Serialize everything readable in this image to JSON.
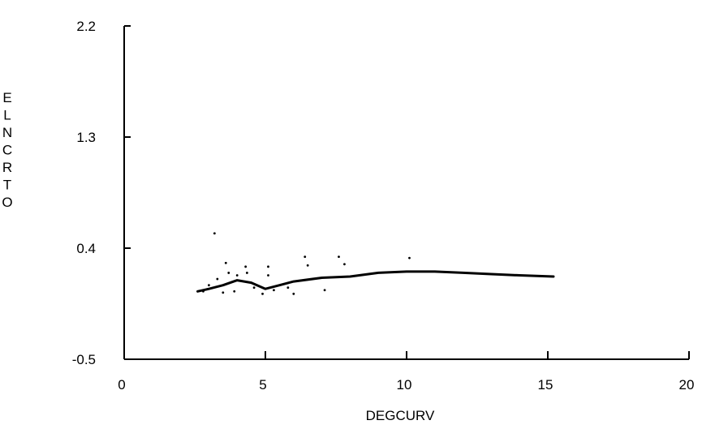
{
  "chart_data": {
    "type": "scatter",
    "title": "",
    "xlabel": "DEGCURV",
    "ylabel": "ELNCRTO",
    "xlim": [
      0,
      20
    ],
    "ylim": [
      -0.5,
      2.2
    ],
    "xticks": [
      "0",
      "5",
      "10",
      "15",
      "20"
    ],
    "xtick_values": [
      0,
      5,
      10,
      15,
      20
    ],
    "yticks": [
      "2.2",
      "1.3",
      "0.4",
      "-0.5"
    ],
    "ytick_values": [
      2.2,
      1.3,
      0.4,
      -0.5
    ],
    "grid": false,
    "points": [
      {
        "x": 2.8,
        "y": 0.05
      },
      {
        "x": 3.0,
        "y": 0.1
      },
      {
        "x": 3.2,
        "y": 0.52
      },
      {
        "x": 3.3,
        "y": 0.15
      },
      {
        "x": 3.5,
        "y": 0.04
      },
      {
        "x": 3.6,
        "y": 0.28
      },
      {
        "x": 3.7,
        "y": 0.2
      },
      {
        "x": 3.9,
        "y": 0.05
      },
      {
        "x": 4.0,
        "y": 0.18
      },
      {
        "x": 4.3,
        "y": 0.25
      },
      {
        "x": 4.35,
        "y": 0.2
      },
      {
        "x": 4.6,
        "y": 0.08
      },
      {
        "x": 4.9,
        "y": 0.03
      },
      {
        "x": 5.1,
        "y": 0.25
      },
      {
        "x": 5.1,
        "y": 0.18
      },
      {
        "x": 5.3,
        "y": 0.06
      },
      {
        "x": 5.8,
        "y": 0.08
      },
      {
        "x": 6.0,
        "y": 0.03
      },
      {
        "x": 6.4,
        "y": 0.33
      },
      {
        "x": 6.5,
        "y": 0.26
      },
      {
        "x": 7.1,
        "y": 0.06
      },
      {
        "x": 7.6,
        "y": 0.33
      },
      {
        "x": 7.8,
        "y": 0.27
      },
      {
        "x": 10.1,
        "y": 0.32
      }
    ],
    "smooth_line": {
      "x": [
        2.6,
        3.0,
        3.5,
        4.0,
        4.5,
        5.0,
        5.5,
        6.0,
        7.0,
        8.0,
        9.0,
        10.0,
        11.0,
        12.0,
        13.0,
        14.0,
        15.2
      ],
      "y": [
        0.05,
        0.07,
        0.1,
        0.14,
        0.12,
        0.07,
        0.1,
        0.13,
        0.16,
        0.17,
        0.2,
        0.21,
        0.21,
        0.2,
        0.19,
        0.18,
        0.17
      ]
    }
  }
}
